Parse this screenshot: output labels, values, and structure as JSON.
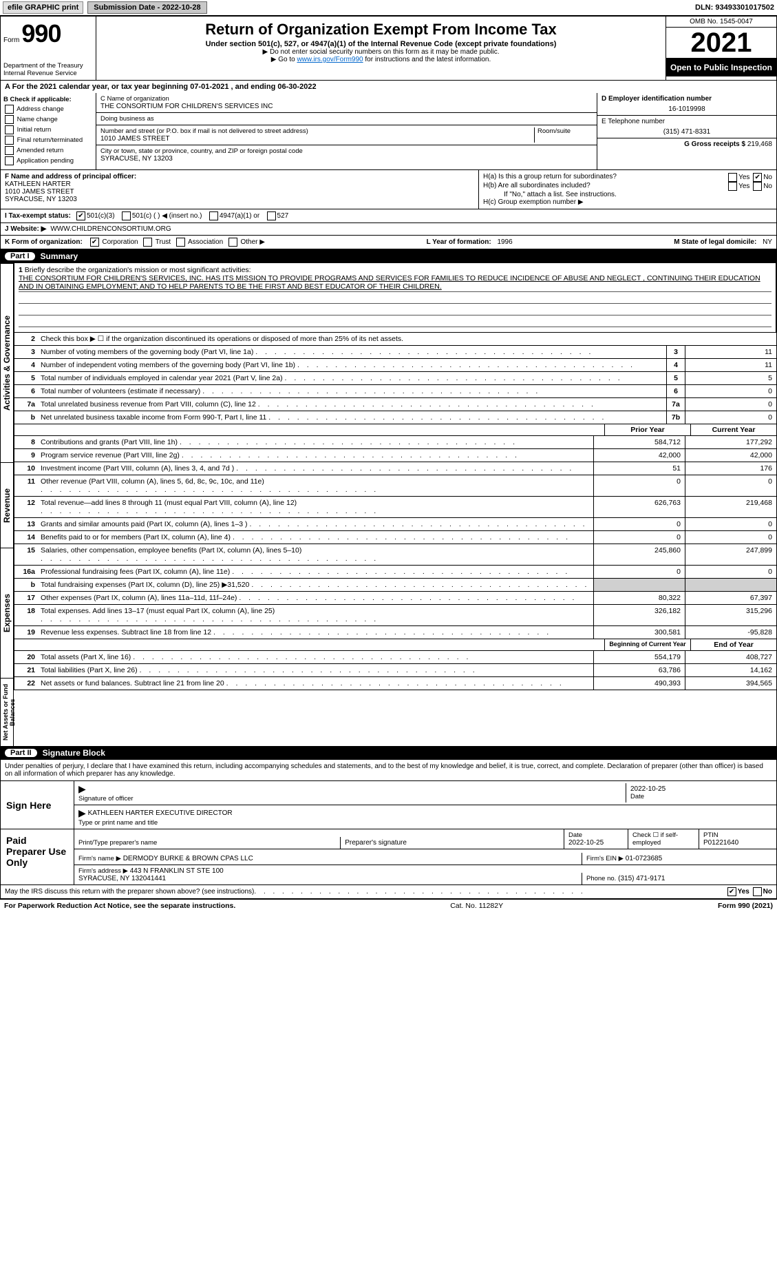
{
  "topbar": {
    "efile": "efile GRAPHIC print",
    "submission_label": "Submission Date - 2022-10-28",
    "dln": "DLN: 93493301017502"
  },
  "header": {
    "form_word": "Form",
    "form_num": "990",
    "title": "Return of Organization Exempt From Income Tax",
    "subtitle": "Under section 501(c), 527, or 4947(a)(1) of the Internal Revenue Code (except private foundations)",
    "note1": "▶ Do not enter social security numbers on this form as it may be made public.",
    "note2_pre": "▶ Go to ",
    "note2_link": "www.irs.gov/Form990",
    "note2_post": " for instructions and the latest information.",
    "omb": "OMB No. 1545-0047",
    "year": "2021",
    "inspection": "Open to Public Inspection",
    "dept": "Department of the Treasury\nInternal Revenue Service"
  },
  "period": {
    "line": "A For the 2021 calendar year, or tax year beginning 07-01-2021     , and ending 06-30-2022"
  },
  "colB": {
    "title": "B Check if applicable:",
    "items": [
      "Address change",
      "Name change",
      "Initial return",
      "Final return/terminated",
      "Amended return",
      "Application pending"
    ]
  },
  "colC": {
    "name_label": "C Name of organization",
    "name": "THE CONSORTIUM FOR CHILDREN'S SERVICES INC",
    "dba_label": "Doing business as",
    "dba": "",
    "addr_label": "Number and street (or P.O. box if mail is not delivered to street address)",
    "room_label": "Room/suite",
    "addr": "1010 JAMES STREET",
    "city_label": "City or town, state or province, country, and ZIP or foreign postal code",
    "city": "SYRACUSE, NY  13203"
  },
  "colD": {
    "ein_label": "D Employer identification number",
    "ein": "16-1019998",
    "tel_label": "E Telephone number",
    "tel": "(315) 471-8331",
    "gross_label": "G Gross receipts $",
    "gross": "219,468"
  },
  "rowF": {
    "label": "F Name and address of principal officer:",
    "name": "KATHLEEN HARTER",
    "addr1": "1010 JAMES STREET",
    "addr2": "SYRACUSE, NY  13203"
  },
  "rowH": {
    "ha": "H(a)  Is this a group return for subordinates?",
    "hb": "H(b)  Are all subordinates included?",
    "hb_note": "If \"No,\" attach a list. See instructions.",
    "hc": "H(c)  Group exemption number ▶",
    "yes": "Yes",
    "no": "No"
  },
  "rowI": {
    "label": "I  Tax-exempt status:",
    "opt1": "501(c)(3)",
    "opt2": "501(c) (   ) ◀ (insert no.)",
    "opt3": "4947(a)(1) or",
    "opt4": "527"
  },
  "rowJ": {
    "label": "J  Website: ▶",
    "val": "WWW.CHILDRENCONSORTIUM.ORG"
  },
  "rowK": {
    "label": "K Form of organization:",
    "opts": [
      "Corporation",
      "Trust",
      "Association",
      "Other ▶"
    ],
    "l_label": "L Year of formation:",
    "l_val": "1996",
    "m_label": "M State of legal domicile:",
    "m_val": "NY"
  },
  "part1": {
    "num": "Part I",
    "title": "Summary"
  },
  "mission": {
    "num": "1",
    "label": "Briefly describe the organization's mission or most significant activities:",
    "text": "THE CONSORTIUM FOR CHILDREN'S SERVICES, INC. HAS ITS MISSION TO PROVIDE PROGRAMS AND SERVICES FOR FAMILIES TO REDUCE INCIDENCE OF ABUSE AND NEGLECT , CONTINUING THEIR EDUCATION AND IN OBTAINING EMPLOYMENT; AND TO HELP PARENTS TO BE THE FIRST AND BEST EDUCATOR OF THEIR CHILDREN."
  },
  "gov_lines": [
    {
      "n": "2",
      "t": "Check this box ▶ ☐ if the organization discontinued its operations or disposed of more than 25% of its net assets.",
      "box": "",
      "v": ""
    },
    {
      "n": "3",
      "t": "Number of voting members of the governing body (Part VI, line 1a)",
      "box": "3",
      "v": "11"
    },
    {
      "n": "4",
      "t": "Number of independent voting members of the governing body (Part VI, line 1b)",
      "box": "4",
      "v": "11"
    },
    {
      "n": "5",
      "t": "Total number of individuals employed in calendar year 2021 (Part V, line 2a)",
      "box": "5",
      "v": "5"
    },
    {
      "n": "6",
      "t": "Total number of volunteers (estimate if necessary)",
      "box": "6",
      "v": "0"
    },
    {
      "n": "7a",
      "t": "Total unrelated business revenue from Part VIII, column (C), line 12",
      "box": "7a",
      "v": "0"
    },
    {
      "n": "b",
      "t": "Net unrelated business taxable income from Form 990-T, Part I, line 11",
      "box": "7b",
      "v": "0"
    }
  ],
  "yr_headers": {
    "prior": "Prior Year",
    "current": "Current Year"
  },
  "rev_lines": [
    {
      "n": "8",
      "t": "Contributions and grants (Part VIII, line 1h)",
      "p": "584,712",
      "c": "177,292"
    },
    {
      "n": "9",
      "t": "Program service revenue (Part VIII, line 2g)",
      "p": "42,000",
      "c": "42,000"
    },
    {
      "n": "10",
      "t": "Investment income (Part VIII, column (A), lines 3, 4, and 7d )",
      "p": "51",
      "c": "176"
    },
    {
      "n": "11",
      "t": "Other revenue (Part VIII, column (A), lines 5, 6d, 8c, 9c, 10c, and 11e)",
      "p": "0",
      "c": "0"
    },
    {
      "n": "12",
      "t": "Total revenue—add lines 8 through 11 (must equal Part VIII, column (A), line 12)",
      "p": "626,763",
      "c": "219,468"
    }
  ],
  "exp_lines": [
    {
      "n": "13",
      "t": "Grants and similar amounts paid (Part IX, column (A), lines 1–3 )",
      "p": "0",
      "c": "0"
    },
    {
      "n": "14",
      "t": "Benefits paid to or for members (Part IX, column (A), line 4)",
      "p": "0",
      "c": "0"
    },
    {
      "n": "15",
      "t": "Salaries, other compensation, employee benefits (Part IX, column (A), lines 5–10)",
      "p": "245,860",
      "c": "247,899"
    },
    {
      "n": "16a",
      "t": "Professional fundraising fees (Part IX, column (A), line 11e)",
      "p": "0",
      "c": "0"
    },
    {
      "n": "b",
      "t": "Total fundraising expenses (Part IX, column (D), line 25) ▶31,520",
      "p": "shade",
      "c": "shade"
    },
    {
      "n": "17",
      "t": "Other expenses (Part IX, column (A), lines 11a–11d, 11f–24e)",
      "p": "80,322",
      "c": "67,397"
    },
    {
      "n": "18",
      "t": "Total expenses. Add lines 13–17 (must equal Part IX, column (A), line 25)",
      "p": "326,182",
      "c": "315,296"
    },
    {
      "n": "19",
      "t": "Revenue less expenses. Subtract line 18 from line 12",
      "p": "300,581",
      "c": "-95,828"
    }
  ],
  "na_headers": {
    "begin": "Beginning of Current Year",
    "end": "End of Year"
  },
  "na_lines": [
    {
      "n": "20",
      "t": "Total assets (Part X, line 16)",
      "p": "554,179",
      "c": "408,727"
    },
    {
      "n": "21",
      "t": "Total liabilities (Part X, line 26)",
      "p": "63,786",
      "c": "14,162"
    },
    {
      "n": "22",
      "t": "Net assets or fund balances. Subtract line 21 from line 20",
      "p": "490,393",
      "c": "394,565"
    }
  ],
  "vert_labels": {
    "gov": "Activities & Governance",
    "rev": "Revenue",
    "exp": "Expenses",
    "na": "Net Assets or Fund Balances"
  },
  "part2": {
    "num": "Part II",
    "title": "Signature Block"
  },
  "sig": {
    "penalty": "Under penalties of perjury, I declare that I have examined this return, including accompanying schedules and statements, and to the best of my knowledge and belief, it is true, correct, and complete. Declaration of preparer (other than officer) is based on all information of which preparer has any knowledge.",
    "sign_here": "Sign Here",
    "sig_officer": "Signature of officer",
    "date": "Date",
    "date_val": "2022-10-25",
    "name_title": "KATHLEEN HARTER  EXECUTIVE DIRECTOR",
    "type_label": "Type or print name and title",
    "paid": "Paid Preparer Use Only",
    "prep_name_l": "Print/Type preparer's name",
    "prep_sig_l": "Preparer's signature",
    "prep_date_l": "Date",
    "prep_date": "2022-10-25",
    "check_l": "Check ☐ if self-employed",
    "ptin_l": "PTIN",
    "ptin": "P01221640",
    "firm_name_l": "Firm's name    ▶",
    "firm_name": "DERMODY BURKE & BROWN CPAS LLC",
    "firm_ein_l": "Firm's EIN ▶",
    "firm_ein": "01-0723685",
    "firm_addr_l": "Firm's address ▶",
    "firm_addr": "443 N FRANKLIN ST STE 100\nSYRACUSE, NY  132041441",
    "phone_l": "Phone no.",
    "phone": "(315) 471-9171",
    "discuss": "May the IRS discuss this return with the preparer shown above? (see instructions)"
  },
  "footer": {
    "left": "For Paperwork Reduction Act Notice, see the separate instructions.",
    "mid": "Cat. No. 11282Y",
    "right": "Form 990 (2021)"
  }
}
